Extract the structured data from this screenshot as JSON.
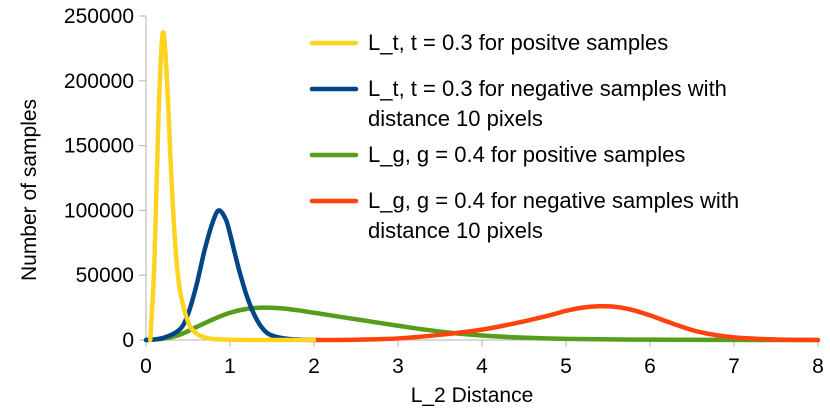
{
  "chart_data": {
    "type": "line",
    "title": "",
    "xlabel": "L_2 Distance",
    "ylabel": "Number of samples",
    "xlim": [
      0,
      8
    ],
    "ylim": [
      0,
      250000
    ],
    "xticks": [
      "0",
      "1",
      "2",
      "3",
      "4",
      "5",
      "6",
      "7",
      "8"
    ],
    "yticks": [
      "0",
      "50000",
      "100000",
      "150000",
      "200000",
      "250000"
    ],
    "grid": false,
    "legend_position": "top-right",
    "series": [
      {
        "name": "L_t, t = 0.3 for positve samples",
        "legend_lines": [
          "L_t, t = 0.3 for positve samples"
        ],
        "color": "#ffd320",
        "x": [
          0.05,
          0.1,
          0.15,
          0.2,
          0.25,
          0.3,
          0.35,
          0.4,
          0.5,
          0.6,
          0.7,
          0.8,
          1.0,
          1.2,
          1.5,
          2.0
        ],
        "y": [
          0,
          60000,
          175000,
          237000,
          200000,
          128000,
          72000,
          40000,
          14000,
          5000,
          2000,
          800,
          200,
          50,
          0,
          0
        ]
      },
      {
        "name": "L_t, t = 0.3 for negative samples with distance 10 pixels",
        "legend_lines": [
          "L_t, t = 0.3 for negative samples with",
          "distance 10 pixels"
        ],
        "color": "#004586",
        "x": [
          0,
          0.2,
          0.4,
          0.5,
          0.6,
          0.7,
          0.8,
          0.87,
          0.95,
          1.0,
          1.1,
          1.2,
          1.3,
          1.4,
          1.5,
          1.7,
          2.0
        ],
        "y": [
          0,
          1500,
          8000,
          20000,
          42000,
          70000,
          92000,
          100000,
          93000,
          82000,
          56000,
          34000,
          18000,
          8000,
          3500,
          800,
          0
        ]
      },
      {
        "name": "L_g, g = 0.4 for positive samples",
        "legend_lines": [
          "L_g, g = 0.4 for positive samples"
        ],
        "color": "#579d1c",
        "x": [
          0,
          0.2,
          0.4,
          0.6,
          0.8,
          1.0,
          1.2,
          1.4,
          1.6,
          1.8,
          2.0,
          2.5,
          3.0,
          3.5,
          4.0,
          4.5,
          5.0,
          6.0,
          7.0,
          8.0
        ],
        "y": [
          0,
          1000,
          4000,
          10000,
          16000,
          21000,
          24000,
          25000,
          24500,
          23000,
          21000,
          16000,
          11000,
          6500,
          3500,
          1800,
          900,
          250,
          80,
          0
        ]
      },
      {
        "name": "L_g, g = 0.4 for negative samples with distance 10 pixels",
        "legend_lines": [
          "L_g, g = 0.4 for negative samples with",
          "distance 10 pixels"
        ],
        "color": "#ff420e",
        "x": [
          2.0,
          2.5,
          3.0,
          3.5,
          4.0,
          4.4,
          4.8,
          5.0,
          5.2,
          5.4,
          5.6,
          5.8,
          6.0,
          6.3,
          6.6,
          7.0,
          7.5,
          8.0
        ],
        "y": [
          0,
          200,
          1200,
          4000,
          8000,
          13000,
          19000,
          22500,
          25000,
          26000,
          25500,
          23000,
          19000,
          12000,
          6000,
          2000,
          400,
          0
        ]
      }
    ]
  }
}
